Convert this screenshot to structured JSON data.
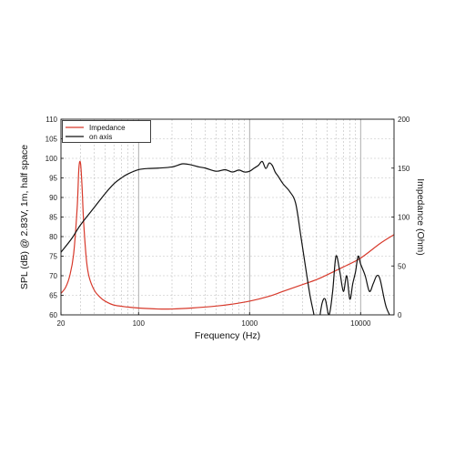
{
  "chart_data": {
    "type": "line",
    "xlabel": "Frequency (Hz)",
    "ylabel": "SPL (dB) @ 2.83V, 1m, half space",
    "y2label": "Impedance (Ohm)",
    "x_scale": "log",
    "xlim": [
      20,
      20000
    ],
    "ylim": [
      60,
      110
    ],
    "y2lim": [
      0,
      200
    ],
    "x_ticks": [
      20,
      100,
      1000,
      10000
    ],
    "y_ticks": [
      60,
      65,
      70,
      75,
      80,
      85,
      90,
      95,
      100,
      105,
      110
    ],
    "y2_ticks": [
      0,
      50,
      100,
      150,
      200
    ],
    "grid": true,
    "legend_position": "top-left",
    "series": [
      {
        "name": "Impedance",
        "color": "#d7392b",
        "axis": "right",
        "x": [
          20,
          22,
          24,
          26,
          28,
          29,
          30,
          31,
          32,
          34,
          36,
          40,
          45,
          50,
          60,
          80,
          100,
          150,
          200,
          300,
          500,
          700,
          1000,
          1500,
          2000,
          3000,
          4000,
          5000,
          7000,
          10000,
          15000,
          20000
        ],
        "y": [
          22,
          28,
          40,
          62,
          110,
          150,
          155,
          130,
          95,
          55,
          38,
          25,
          18,
          14,
          10,
          8,
          7,
          6,
          6,
          7,
          9,
          11,
          14,
          19,
          24,
          31,
          36,
          41,
          49,
          58,
          73,
          82
        ]
      },
      {
        "name": "on axis",
        "color": "#111111",
        "axis": "left",
        "x": [
          20,
          25,
          30,
          40,
          50,
          60,
          70,
          80,
          100,
          120,
          150,
          200,
          250,
          300,
          350,
          400,
          500,
          600,
          700,
          800,
          900,
          1000,
          1100,
          1200,
          1300,
          1400,
          1500,
          1600,
          1700,
          1800,
          2000,
          2300,
          2600,
          2900,
          3200,
          3500,
          3800,
          4000,
          4200,
          4500,
          4800,
          5200,
          5600,
          6000,
          6500,
          7000,
          7500,
          8000,
          8500,
          9000,
          9500,
          10000,
          11000,
          12000,
          13000,
          14000,
          15000,
          17000,
          20000
        ],
        "y": [
          76,
          79.5,
          83,
          87.5,
          91,
          93.5,
          95,
          96,
          97.1,
          97.4,
          97.5,
          97.8,
          98.6,
          98.3,
          97.8,
          97.5,
          96.7,
          97.1,
          96.5,
          97,
          96.5,
          96.7,
          97.5,
          98.2,
          99.2,
          97.4,
          98.8,
          98.2,
          96.5,
          95.5,
          93.5,
          91.5,
          88.5,
          80,
          72,
          65,
          60,
          56,
          58,
          63,
          64,
          60,
          66,
          75,
          71,
          66,
          70,
          64,
          68,
          71,
          75,
          73,
          70,
          66,
          68,
          70,
          69,
          62,
          58
        ]
      }
    ]
  }
}
